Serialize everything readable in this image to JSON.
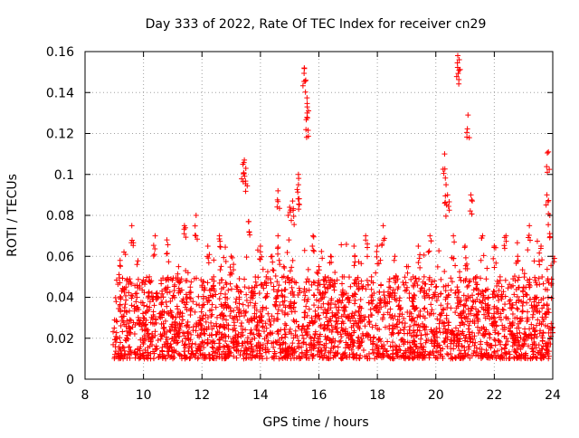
{
  "chart_data": {
    "type": "scatter",
    "title": "Day 333 of 2022, Rate Of TEC Index for receiver cn29",
    "xlabel": "GPS time / hours",
    "ylabel": "ROTI / TECUs",
    "xlim": [
      8,
      24
    ],
    "ylim": [
      0,
      0.16
    ],
    "xticks": [
      8,
      10,
      12,
      14,
      16,
      18,
      20,
      22,
      24
    ],
    "yticks": [
      0,
      0.02,
      0.04,
      0.06,
      0.08,
      0.1,
      0.12,
      0.14,
      0.16
    ],
    "xtick_labels": [
      "8",
      "10",
      "12",
      "14",
      "16",
      "18",
      "20",
      "22",
      "24"
    ],
    "ytick_labels": [
      "0",
      "0.02",
      "0.04",
      "0.06",
      "0.08",
      "0.1",
      "0.12",
      "0.14",
      "0.16"
    ],
    "grid": true,
    "marker": "+",
    "series": [
      {
        "name": "ROTI",
        "color": "#ff0000",
        "x": [
          9.0,
          9.2,
          9.4,
          9.6,
          9.8,
          10.0,
          10.2,
          10.4,
          10.6,
          10.8,
          11.0,
          11.2,
          11.4,
          11.6,
          11.8,
          12.0,
          12.2,
          12.4,
          12.6,
          12.8,
          13.0,
          13.2,
          13.4,
          13.45,
          13.5,
          13.6,
          13.8,
          14.0,
          14.2,
          14.4,
          14.6,
          14.6,
          14.8,
          15.0,
          15.1,
          15.3,
          15.3,
          15.5,
          15.55,
          15.6,
          15.6,
          15.8,
          16.0,
          16.2,
          16.4,
          16.6,
          16.8,
          17.0,
          17.2,
          17.4,
          17.6,
          17.8,
          18.0,
          18.2,
          18.4,
          18.6,
          18.8,
          19.0,
          19.2,
          19.4,
          19.6,
          19.8,
          20.0,
          20.3,
          20.35,
          20.4,
          20.6,
          20.75,
          20.8,
          21.0,
          21.1,
          21.2,
          21.4,
          21.6,
          21.8,
          22.0,
          22.2,
          22.4,
          22.6,
          22.8,
          23.0,
          23.2,
          23.4,
          23.6,
          23.8,
          23.85,
          23.9,
          24.0
        ],
        "y": [
          0.025,
          0.058,
          0.045,
          0.075,
          0.035,
          0.03,
          0.05,
          0.07,
          0.04,
          0.068,
          0.03,
          0.055,
          0.075,
          0.045,
          0.08,
          0.035,
          0.065,
          0.05,
          0.07,
          0.04,
          0.06,
          0.035,
          0.105,
          0.107,
          0.103,
          0.077,
          0.045,
          0.065,
          0.05,
          0.06,
          0.092,
          0.07,
          0.055,
          0.084,
          0.087,
          0.095,
          0.1,
          0.152,
          0.146,
          0.133,
          0.13,
          0.07,
          0.055,
          0.045,
          0.06,
          0.035,
          0.05,
          0.04,
          0.065,
          0.035,
          0.07,
          0.05,
          0.065,
          0.075,
          0.045,
          0.06,
          0.035,
          0.055,
          0.04,
          0.065,
          0.05,
          0.07,
          0.045,
          0.11,
          0.095,
          0.09,
          0.07,
          0.158,
          0.156,
          0.065,
          0.129,
          0.09,
          0.05,
          0.07,
          0.04,
          0.065,
          0.05,
          0.07,
          0.035,
          0.06,
          0.045,
          0.075,
          0.04,
          0.065,
          0.09,
          0.111,
          0.08,
          0.06
        ],
        "baseline_range": [
          0.01,
          0.05
        ]
      }
    ]
  }
}
